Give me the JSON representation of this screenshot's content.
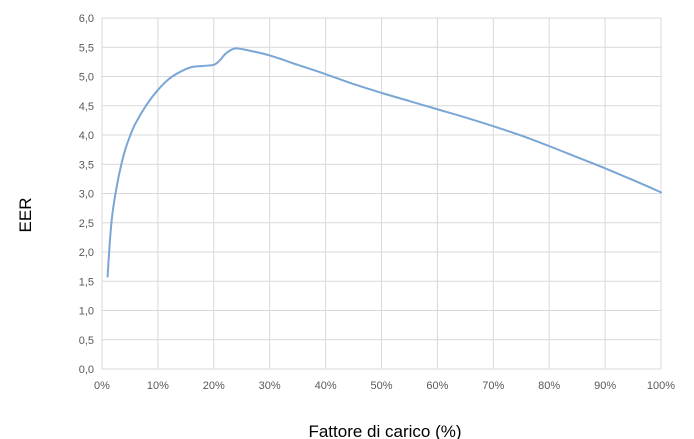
{
  "chart_data": {
    "type": "line",
    "title": "",
    "xlabel": "Fattore di carico (%)",
    "ylabel": "EER",
    "xlim": [
      0,
      100
    ],
    "ylim": [
      0,
      6
    ],
    "x_ticks": [
      "0%",
      "10%",
      "20%",
      "30%",
      "40%",
      "50%",
      "60%",
      "70%",
      "80%",
      "90%",
      "100%"
    ],
    "y_ticks": [
      "0,0",
      "0,5",
      "1,0",
      "1,5",
      "2,0",
      "2,5",
      "3,0",
      "3,5",
      "4,0",
      "4,5",
      "5,0",
      "5,5",
      "6,0"
    ],
    "grid": true,
    "legend": "none",
    "series": [
      {
        "color": "#7aa6d6",
        "points": [
          [
            1,
            1.58
          ],
          [
            1.5,
            2.3
          ],
          [
            2,
            2.75
          ],
          [
            3,
            3.3
          ],
          [
            4,
            3.7
          ],
          [
            5,
            3.98
          ],
          [
            6,
            4.2
          ],
          [
            8,
            4.52
          ],
          [
            10,
            4.77
          ],
          [
            12,
            4.96
          ],
          [
            14,
            5.08
          ],
          [
            16,
            5.16
          ],
          [
            18,
            5.18
          ],
          [
            20,
            5.2
          ],
          [
            21,
            5.27
          ],
          [
            22,
            5.38
          ],
          [
            23,
            5.45
          ],
          [
            24,
            5.48
          ],
          [
            26,
            5.45
          ],
          [
            30,
            5.36
          ],
          [
            35,
            5.2
          ],
          [
            40,
            5.04
          ],
          [
            45,
            4.87
          ],
          [
            50,
            4.72
          ],
          [
            55,
            4.58
          ],
          [
            60,
            4.44
          ],
          [
            65,
            4.3
          ],
          [
            70,
            4.15
          ],
          [
            75,
            3.99
          ],
          [
            80,
            3.81
          ],
          [
            85,
            3.62
          ],
          [
            90,
            3.43
          ],
          [
            95,
            3.23
          ],
          [
            100,
            3.02
          ]
        ]
      }
    ]
  }
}
